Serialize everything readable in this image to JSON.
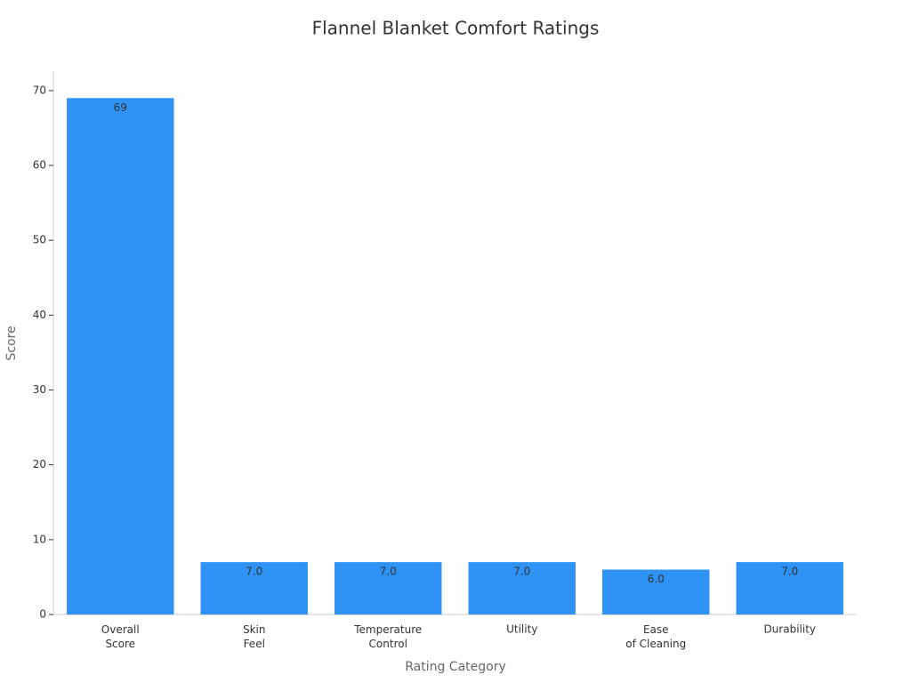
{
  "chart_data": {
    "type": "bar",
    "title": "Flannel Blanket Comfort Ratings",
    "x_label": "Rating Category",
    "y_label": "Score",
    "categories": [
      "Overall\nScore",
      "Skin\nFeel",
      "Temperature\nControl",
      "Utility",
      "Ease\nof Cleaning",
      "Durability"
    ],
    "values": [
      69,
      7,
      7,
      7,
      6,
      7
    ],
    "value_labels": [
      "69",
      "7.0",
      "7.0",
      "7.0",
      "6.0",
      "7.0"
    ],
    "color": "#2e93f5",
    "ylim": [
      0,
      72.6
    ],
    "yticks": [
      0,
      10,
      20,
      30,
      40,
      50,
      60,
      70
    ],
    "grid": false
  }
}
